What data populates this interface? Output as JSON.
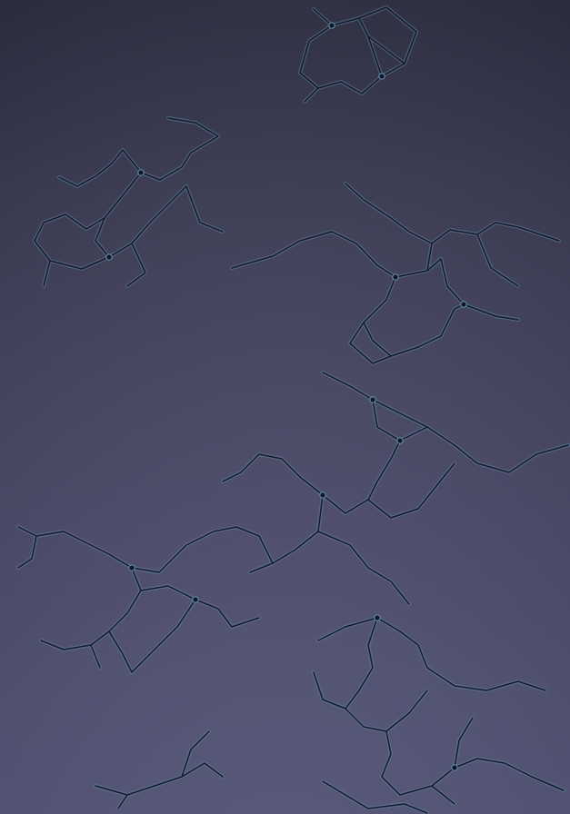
{
  "scene": {
    "kind": "abstract cracked mesh texture",
    "palette": {
      "background_top": "#2e2e42",
      "background_bottom": "#5a5a7e",
      "line_dark": "#151526",
      "line_accent": "#5d8aa3"
    }
  }
}
